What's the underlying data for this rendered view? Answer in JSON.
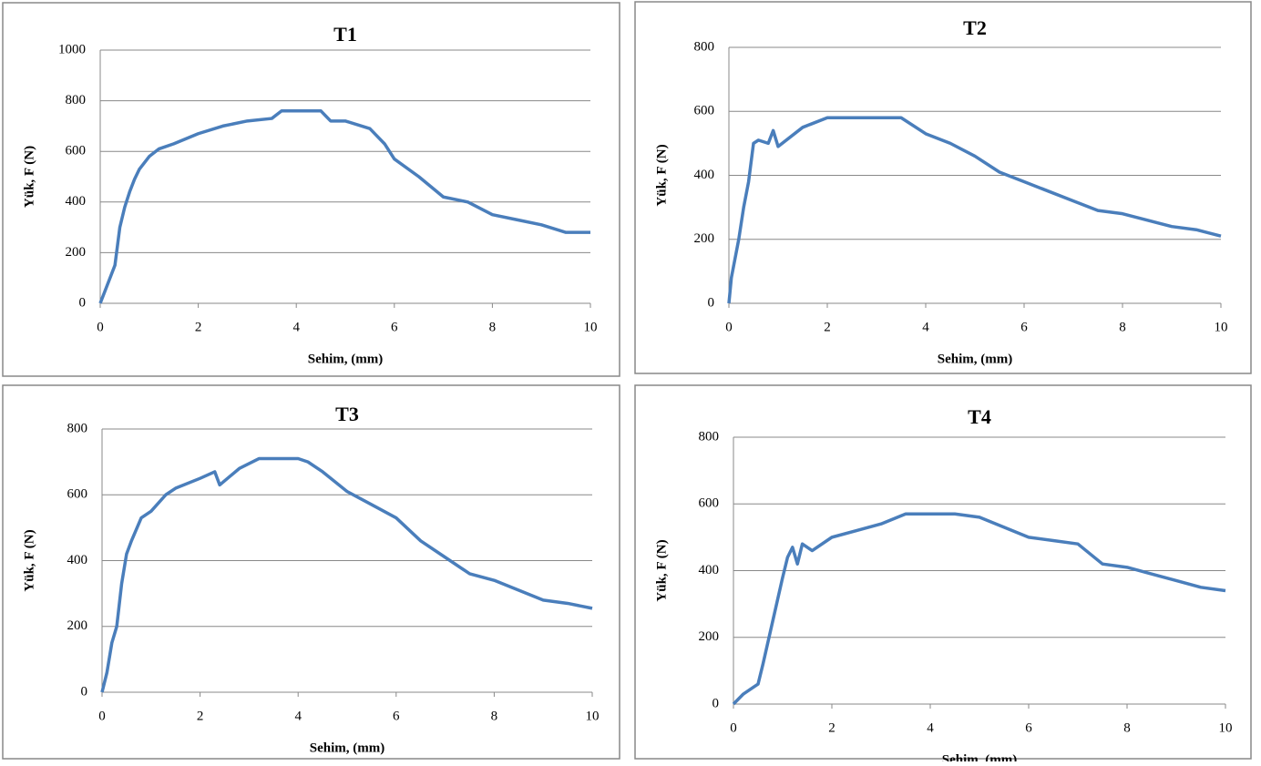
{
  "chart_data": [
    {
      "type": "line",
      "title": "T1",
      "xlabel": "Sehim, (mm)",
      "ylabel": "Yük, F (N)",
      "color": "#4a7ebb",
      "grid": true,
      "xlim": [
        0,
        10
      ],
      "xticks": [
        0,
        2,
        4,
        6,
        8,
        10
      ],
      "ylim": [
        0,
        1000
      ],
      "yticks": [
        0,
        200,
        400,
        600,
        800,
        1000
      ],
      "x": [
        0,
        0.1,
        0.3,
        0.4,
        0.5,
        0.6,
        0.7,
        0.8,
        1,
        1.2,
        1.5,
        2,
        2.5,
        3,
        3.5,
        3.7,
        4,
        4.5,
        4.7,
        5,
        5.5,
        5.8,
        6,
        6.5,
        7,
        7.5,
        8,
        8.5,
        9,
        9.5,
        10
      ],
      "values": [
        0,
        50,
        150,
        300,
        380,
        440,
        490,
        530,
        580,
        610,
        630,
        670,
        700,
        720,
        730,
        760,
        760,
        760,
        720,
        720,
        690,
        630,
        570,
        500,
        420,
        400,
        350,
        330,
        310,
        280,
        280
      ]
    },
    {
      "type": "line",
      "title": "T2",
      "xlabel": "Sehim, (mm)",
      "ylabel": "Yük, F (N)",
      "color": "#4a7ebb",
      "grid": true,
      "xlim": [
        0,
        10
      ],
      "xticks": [
        0,
        2,
        4,
        6,
        8,
        10
      ],
      "ylim": [
        0,
        800
      ],
      "yticks": [
        0,
        200,
        400,
        600,
        800
      ],
      "x": [
        0,
        0.05,
        0.2,
        0.3,
        0.4,
        0.5,
        0.6,
        0.8,
        0.9,
        1,
        1.5,
        2,
        2.5,
        3,
        3.5,
        4,
        4.5,
        5,
        5.5,
        6,
        6.5,
        7,
        7.5,
        8,
        8.5,
        9,
        9.5,
        10
      ],
      "values": [
        0,
        80,
        200,
        300,
        380,
        500,
        510,
        500,
        540,
        490,
        550,
        580,
        580,
        580,
        580,
        530,
        500,
        460,
        410,
        380,
        350,
        320,
        290,
        280,
        260,
        240,
        230,
        210
      ]
    },
    {
      "type": "line",
      "title": "T3",
      "xlabel": "Sehim, (mm)",
      "ylabel": "Yük, F (N)",
      "color": "#4a7ebb",
      "grid": true,
      "xlim": [
        0,
        10
      ],
      "xticks": [
        0,
        2,
        4,
        6,
        8,
        10
      ],
      "ylim": [
        0,
        800
      ],
      "yticks": [
        0,
        200,
        400,
        600,
        800
      ],
      "x": [
        0,
        0.1,
        0.2,
        0.3,
        0.4,
        0.5,
        0.6,
        0.8,
        1,
        1.3,
        1.5,
        2,
        2.3,
        2.4,
        2.8,
        3.2,
        3.5,
        4,
        4.2,
        4.5,
        5,
        5.5,
        6,
        6.5,
        7,
        7.5,
        8,
        8.5,
        9,
        9.5,
        10
      ],
      "values": [
        0,
        60,
        150,
        200,
        330,
        420,
        460,
        530,
        550,
        600,
        620,
        650,
        670,
        630,
        680,
        710,
        710,
        710,
        700,
        670,
        610,
        570,
        530,
        460,
        410,
        360,
        340,
        310,
        280,
        270,
        255
      ]
    },
    {
      "type": "line",
      "title": "T4",
      "xlabel": "Sehim, (mm)",
      "ylabel": "Yük, F (N)",
      "color": "#4a7ebb",
      "grid": true,
      "xlim": [
        0,
        10
      ],
      "xticks": [
        0,
        2,
        4,
        6,
        8,
        10
      ],
      "ylim": [
        0,
        800
      ],
      "yticks": [
        0,
        200,
        400,
        600,
        800
      ],
      "x": [
        0,
        0.2,
        0.4,
        0.5,
        0.6,
        0.8,
        1,
        1.1,
        1.2,
        1.3,
        1.4,
        1.6,
        2,
        2.5,
        3,
        3.5,
        4,
        4.5,
        5,
        5.5,
        6,
        6.5,
        7,
        7.5,
        8,
        8.5,
        9,
        9.5,
        10
      ],
      "values": [
        0,
        30,
        50,
        60,
        120,
        250,
        380,
        440,
        470,
        420,
        480,
        460,
        500,
        520,
        540,
        570,
        570,
        570,
        560,
        530,
        500,
        490,
        480,
        420,
        410,
        390,
        370,
        350,
        340
      ]
    }
  ]
}
